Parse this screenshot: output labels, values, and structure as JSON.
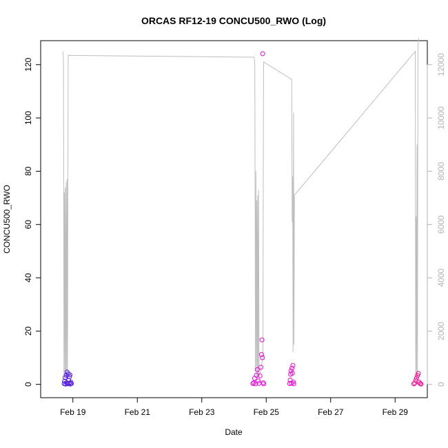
{
  "chart_data": {
    "type": "scatter",
    "title": "ORCAS RF12-19 CONCU500_RWO (Log)",
    "xlabel": "Date",
    "ylabel": "CONCU500_RWO",
    "xlim_days": [
      "2016-02-18T00:00",
      "2016-03-01T00:00"
    ],
    "x_ticks": [
      {
        "label": "Feb 19",
        "date": "2016-02-19"
      },
      {
        "label": "Feb 21",
        "date": "2016-02-21"
      },
      {
        "label": "Feb 23",
        "date": "2016-02-23"
      },
      {
        "label": "Feb 25",
        "date": "2016-02-25"
      },
      {
        "label": "Feb 27",
        "date": "2016-02-27"
      },
      {
        "label": "Feb 29",
        "date": "2016-02-29"
      }
    ],
    "ylim": [
      -5,
      129
    ],
    "y_ticks": [
      0,
      20,
      40,
      60,
      80,
      100,
      120
    ],
    "y2lim": [
      -500,
      12900
    ],
    "y2_ticks": [
      0,
      2000,
      4000,
      6000,
      8000,
      10000,
      12000
    ],
    "colors": {
      "line": "#bebebe",
      "frame": "#000000",
      "right_axis": "#b3b3b3"
    },
    "series": [
      {
        "type": "scatter",
        "points": [
          {
            "x": "2016-02-18T17:30",
            "y": 0.3,
            "color": "#4b16e8"
          },
          {
            "x": "2016-02-18T17:50",
            "y": 1.2,
            "color": "#4b16e8"
          },
          {
            "x": "2016-02-18T18:10",
            "y": 2.5,
            "color": "#4b16e8"
          },
          {
            "x": "2016-02-18T18:30",
            "y": 0.1,
            "color": "#4b16e8"
          },
          {
            "x": "2016-02-18T19:00",
            "y": 3.4,
            "color": "#4e15e7"
          },
          {
            "x": "2016-02-18T19:20",
            "y": 0.6,
            "color": "#4e15e7"
          },
          {
            "x": "2016-02-18T19:40",
            "y": 4.6,
            "color": "#4e15e7"
          },
          {
            "x": "2016-02-18T20:00",
            "y": 0.2,
            "color": "#5014e6"
          },
          {
            "x": "2016-02-18T20:30",
            "y": 3.9,
            "color": "#5014e6"
          },
          {
            "x": "2016-02-18T20:50",
            "y": 1.5,
            "color": "#5014e6"
          },
          {
            "x": "2016-02-18T21:10",
            "y": 0.4,
            "color": "#5314e5"
          },
          {
            "x": "2016-02-18T21:30",
            "y": 2.9,
            "color": "#5314e5"
          },
          {
            "x": "2016-02-18T21:50",
            "y": 3.6,
            "color": "#5314e5"
          },
          {
            "x": "2016-02-18T22:10",
            "y": 0.1,
            "color": "#5513e4"
          },
          {
            "x": "2016-02-18T22:30",
            "y": 0.8,
            "color": "#5513e4"
          },
          {
            "x": "2016-02-18T22:50",
            "y": 0.3,
            "color": "#5513e4"
          },
          {
            "x": "2016-02-24T14:00",
            "y": 0.3,
            "color": "#ee08d8"
          },
          {
            "x": "2016-02-24T14:40",
            "y": 0.6,
            "color": "#ee08d8"
          },
          {
            "x": "2016-02-24T15:20",
            "y": 2.3,
            "color": "#ef08d8"
          },
          {
            "x": "2016-02-24T16:00",
            "y": 0.2,
            "color": "#ef08d8"
          },
          {
            "x": "2016-02-24T16:40",
            "y": 3.4,
            "color": "#f007d9"
          },
          {
            "x": "2016-02-24T17:20",
            "y": 5.5,
            "color": "#f007d9"
          },
          {
            "x": "2016-02-24T18:00",
            "y": 1.3,
            "color": "#f107da"
          },
          {
            "x": "2016-02-24T18:40",
            "y": 0.4,
            "color": "#f107da"
          },
          {
            "x": "2016-02-24T19:20",
            "y": 3.2,
            "color": "#f206da"
          },
          {
            "x": "2016-02-24T20:00",
            "y": 6.4,
            "color": "#f206da"
          },
          {
            "x": "2016-02-24T20:30",
            "y": 11.2,
            "color": "#f306db"
          },
          {
            "x": "2016-02-24T20:50",
            "y": 16.7,
            "color": "#f306db"
          },
          {
            "x": "2016-02-24T21:10",
            "y": 10.0,
            "color": "#f306db"
          },
          {
            "x": "2016-02-24T21:20",
            "y": 124.1,
            "color": "#f306db"
          },
          {
            "x": "2016-02-24T21:40",
            "y": 0.6,
            "color": "#f405dc"
          },
          {
            "x": "2016-02-24T22:10",
            "y": 0.2,
            "color": "#f405dc"
          },
          {
            "x": "2016-02-25T17:30",
            "y": 0.3,
            "color": "#f604d5"
          },
          {
            "x": "2016-02-25T17:50",
            "y": 1.6,
            "color": "#f604d5"
          },
          {
            "x": "2016-02-25T18:10",
            "y": 3.8,
            "color": "#f604d5"
          },
          {
            "x": "2016-02-25T18:30",
            "y": 5.1,
            "color": "#f704d4"
          },
          {
            "x": "2016-02-25T18:50",
            "y": 0.4,
            "color": "#f704d4"
          },
          {
            "x": "2016-02-25T19:10",
            "y": 6.1,
            "color": "#f704d4"
          },
          {
            "x": "2016-02-25T19:30",
            "y": 4.2,
            "color": "#f803d3"
          },
          {
            "x": "2016-02-25T19:50",
            "y": 7.1,
            "color": "#f803d3"
          },
          {
            "x": "2016-02-25T20:10",
            "y": 0.9,
            "color": "#f803d3"
          },
          {
            "x": "2016-02-25T20:30",
            "y": 0.2,
            "color": "#f902d2"
          },
          {
            "x": "2016-02-29T14:00",
            "y": 0.2,
            "color": "#ff0090"
          },
          {
            "x": "2016-02-29T14:40",
            "y": 0.5,
            "color": "#ff0090"
          },
          {
            "x": "2016-02-29T15:20",
            "y": 1.5,
            "color": "#ff008f"
          },
          {
            "x": "2016-02-29T16:00",
            "y": 2.4,
            "color": "#ff008f"
          },
          {
            "x": "2016-02-29T16:40",
            "y": 3.3,
            "color": "#ff008e"
          },
          {
            "x": "2016-02-29T17:20",
            "y": 4.1,
            "color": "#ff008e"
          },
          {
            "x": "2016-02-29T18:00",
            "y": 0.8,
            "color": "#ff008d"
          },
          {
            "x": "2016-02-29T18:40",
            "y": 0.3,
            "color": "#ff008d"
          },
          {
            "x": "2016-02-29T19:20",
            "y": 0.1,
            "color": "#ff008c"
          }
        ]
      },
      {
        "type": "line",
        "axis": "right",
        "points": [
          [
            "2016-02-18T16:30",
            12500
          ],
          [
            "2016-02-18T17:00",
            12200
          ],
          [
            "2016-02-18T17:20",
            300
          ],
          [
            "2016-02-18T17:40",
            7200
          ],
          [
            "2016-02-18T18:00",
            200
          ],
          [
            "2016-02-18T18:20",
            7400
          ],
          [
            "2016-02-18T18:40",
            300
          ],
          [
            "2016-02-18T19:00",
            7600
          ],
          [
            "2016-02-18T19:20",
            250
          ],
          [
            "2016-02-18T19:40",
            7700
          ],
          [
            "2016-02-18T20:00",
            200
          ],
          [
            "2016-02-18T20:30",
            12350
          ],
          [
            "2016-02-24T15:00",
            12280
          ],
          [
            "2016-02-24T15:30",
            12000
          ],
          [
            "2016-02-24T16:00",
            500
          ],
          [
            "2016-02-24T16:20",
            8000
          ],
          [
            "2016-02-24T16:40",
            300
          ],
          [
            "2016-02-24T17:00",
            6900
          ],
          [
            "2016-02-24T17:20",
            250
          ],
          [
            "2016-02-24T17:40",
            7100
          ],
          [
            "2016-02-24T18:00",
            300
          ],
          [
            "2016-02-24T18:20",
            7300
          ],
          [
            "2016-02-24T18:40",
            250
          ],
          [
            "2016-02-24T21:30",
            1000
          ],
          [
            "2016-02-24T22:00",
            12100
          ],
          [
            "2016-02-25T19:00",
            11450
          ],
          [
            "2016-02-25T19:20",
            6100
          ],
          [
            "2016-02-25T19:40",
            7800
          ],
          [
            "2016-02-25T20:00",
            1200
          ],
          [
            "2016-02-25T20:20",
            10200
          ],
          [
            "2016-02-25T20:40",
            1500
          ],
          [
            "2016-02-25T21:00",
            7100
          ],
          [
            "2016-02-29T15:00",
            12500
          ],
          [
            "2016-02-29T15:20",
            400
          ],
          [
            "2016-02-29T15:40",
            6300
          ],
          [
            "2016-02-29T16:00",
            200
          ],
          [
            "2016-02-29T16:20",
            9000
          ],
          [
            "2016-02-29T16:40",
            300
          ],
          [
            "2016-02-29T17:00",
            12700
          ],
          [
            "2016-02-29T17:40",
            13000
          ]
        ]
      }
    ]
  }
}
